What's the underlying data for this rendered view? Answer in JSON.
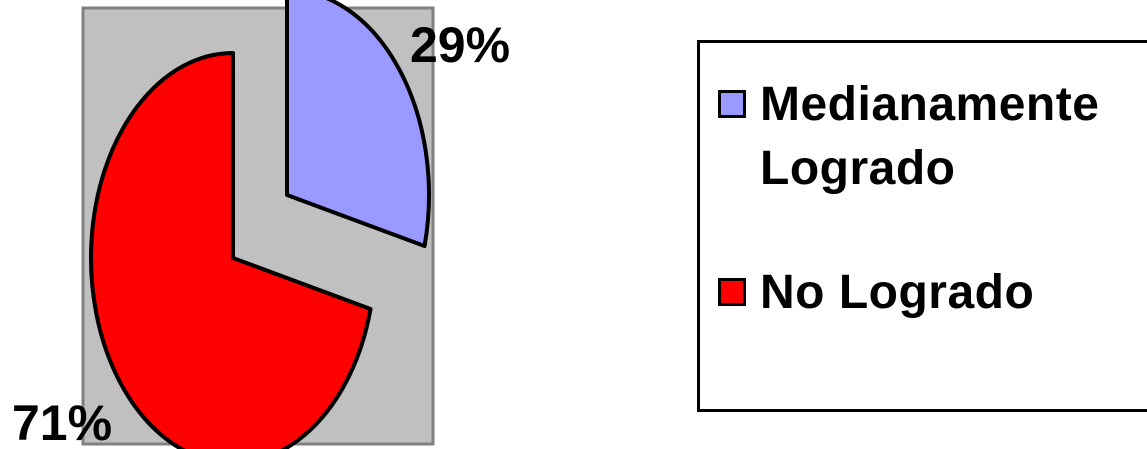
{
  "chart_data": {
    "type": "pie",
    "title": "",
    "labels": [
      "Medianamente Logrado",
      "No Logrado"
    ],
    "values": [
      29,
      71
    ],
    "value_labels": [
      "29%",
      "71%"
    ],
    "colors": [
      "#9999ff",
      "#ff0000"
    ],
    "start_angle_deg": 0,
    "direction": "clockwise",
    "exploded": true,
    "plot_area_color": "#c0c0c0",
    "legend": {
      "placement": "right",
      "entries": [
        "Medianamente Logrado",
        "No Logrado"
      ]
    }
  }
}
